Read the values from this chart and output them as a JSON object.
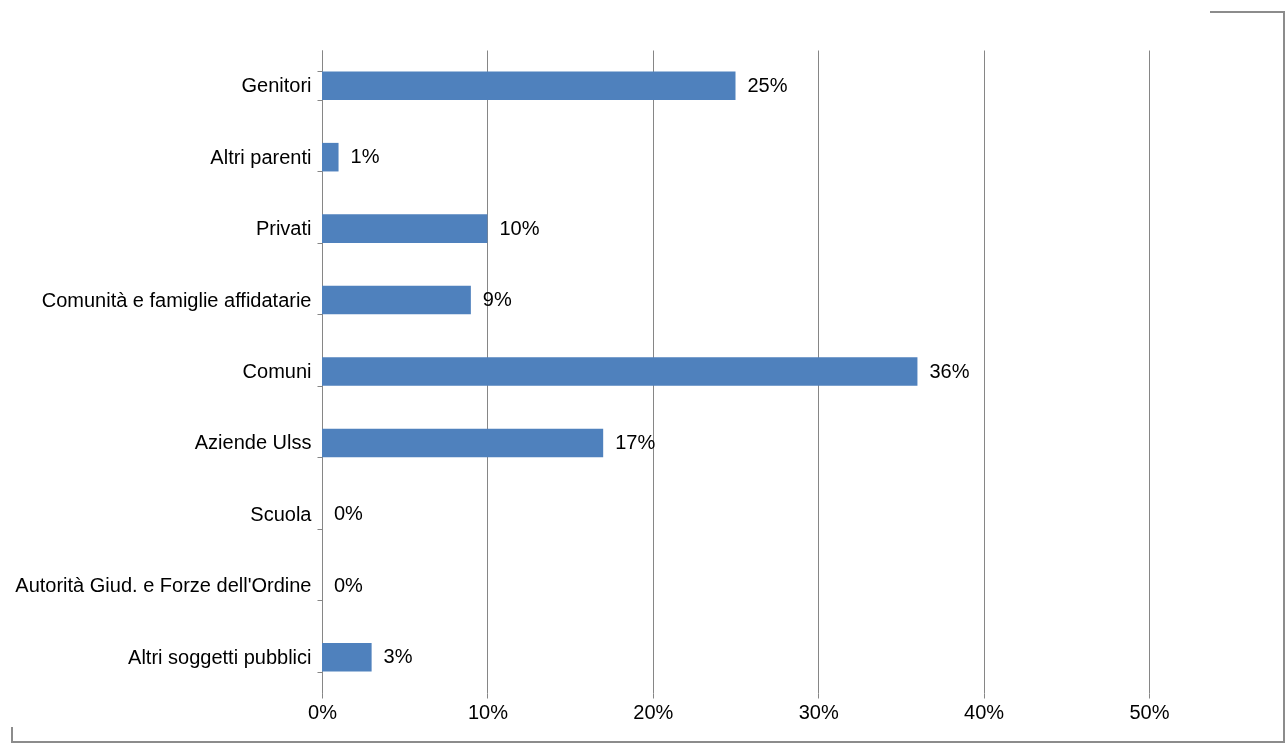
{
  "chart_data": {
    "type": "bar",
    "orientation": "horizontal",
    "categories": [
      "Genitori",
      "Altri parenti",
      "Privati",
      "Comunità e famiglie affidatarie",
      "Comuni",
      "Aziende Ulss",
      "Scuola",
      "Autorità Giud. e Forze dell'Ordine",
      "Altri soggetti pubblici"
    ],
    "values": [
      25,
      1,
      10,
      9,
      36,
      17,
      0,
      0,
      3
    ],
    "value_labels": [
      "25%",
      "1%",
      "10%",
      "9%",
      "36%",
      "17%",
      "0%",
      "0%",
      "3%"
    ],
    "color": "#4f81bd",
    "xlim": [
      0,
      50
    ],
    "xticks": [
      {
        "value": 0,
        "label": "0%"
      },
      {
        "value": 10,
        "label": "10%"
      },
      {
        "value": 20,
        "label": "20%"
      },
      {
        "value": 30,
        "label": "30%"
      },
      {
        "value": 40,
        "label": "40%"
      },
      {
        "value": 50,
        "label": "50%"
      }
    ],
    "grid": "x"
  }
}
